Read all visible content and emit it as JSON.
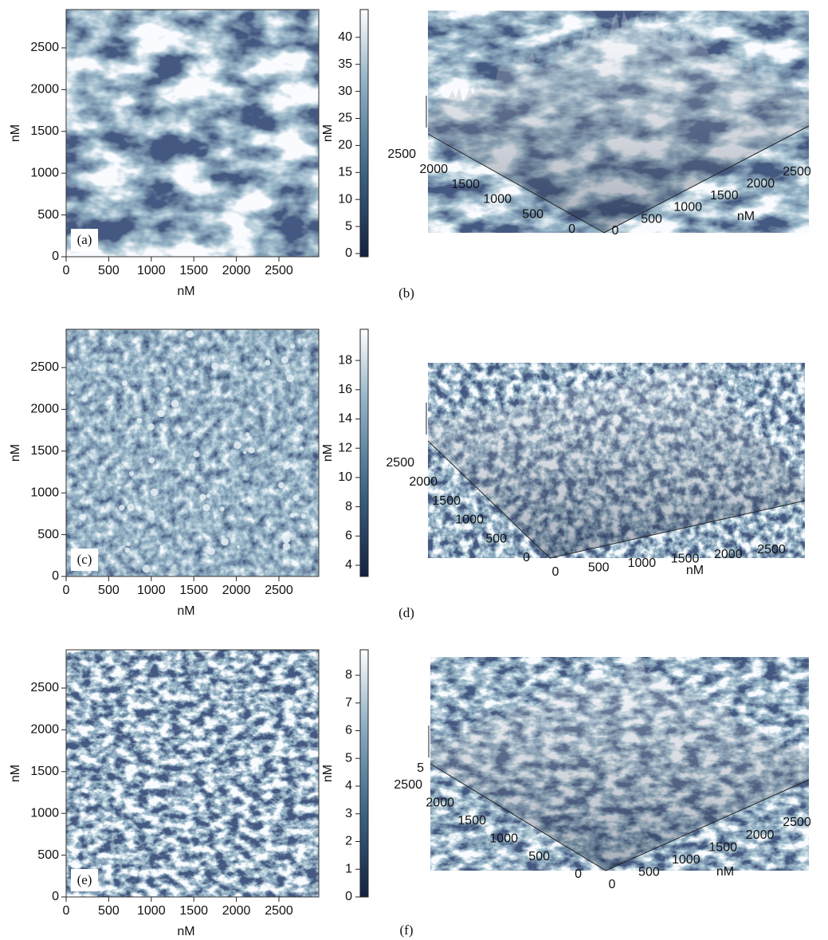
{
  "panels": [
    {
      "label": "(a)",
      "x_label": "nM",
      "y_label": "nM",
      "x_ticks": [
        0,
        500,
        1000,
        1500,
        2000,
        2500
      ],
      "y_ticks": [
        0,
        500,
        1000,
        1500,
        2000,
        2500
      ],
      "colorbar_label": "nM",
      "colorbar_ticks": [
        0,
        5,
        10,
        15,
        20,
        25,
        30,
        35,
        40
      ]
    },
    {
      "label": "(b)",
      "left_ticks": [
        2500,
        2000,
        1500,
        1000,
        500,
        0
      ],
      "right_ticks": [
        0,
        500,
        1000,
        1500,
        2000,
        2500
      ],
      "axis_label": "nM"
    },
    {
      "label": "(c)",
      "x_label": "nM",
      "y_label": "nM",
      "x_ticks": [
        0,
        500,
        1000,
        1500,
        2000,
        2500
      ],
      "y_ticks": [
        0,
        500,
        1000,
        1500,
        2000,
        2500
      ],
      "colorbar_label": "nM",
      "colorbar_ticks": [
        4,
        6,
        8,
        10,
        12,
        14,
        16,
        18
      ]
    },
    {
      "label": "(d)",
      "left_ticks": [
        2500,
        2000,
        1500,
        1000,
        500,
        0
      ],
      "right_ticks": [
        0,
        500,
        1000,
        1500,
        2000,
        2500
      ],
      "axis_label": "nM"
    },
    {
      "label": "(e)",
      "x_label": "nM",
      "y_label": "nM",
      "x_ticks": [
        0,
        500,
        1000,
        1500,
        2000,
        2500
      ],
      "y_ticks": [
        0,
        500,
        1000,
        1500,
        2000,
        2500
      ],
      "colorbar_label": "nM",
      "colorbar_ticks": [
        0,
        1,
        2,
        3,
        4,
        5,
        6,
        7,
        8
      ]
    },
    {
      "label": "(f)",
      "left_ticks": [
        2500,
        2000,
        1500,
        1000,
        500,
        0
      ],
      "right_ticks": [
        0,
        500,
        1000,
        1500,
        2000,
        2500
      ],
      "axis_label": "nM",
      "z_ticks": [
        5
      ]
    }
  ]
}
